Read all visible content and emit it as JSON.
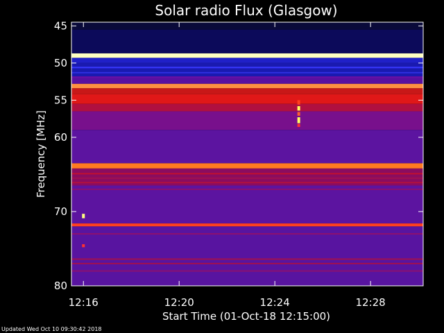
{
  "footer": {
    "updated": "Updated Wed Oct 10 09:30:42 2018"
  },
  "chart_data": {
    "type": "heatmap",
    "title": "Solar radio Flux (Glasgow)",
    "xlabel": "Start Time (01-Oct-18 12:15:00)",
    "ylabel": "Frequency [MHz]",
    "x_unit": "minutes after 12:15:00",
    "xlim": [
      0.5,
      15.2
    ],
    "x_ticks": [
      {
        "value": 1,
        "label": "12:16"
      },
      {
        "value": 5,
        "label": "12:20"
      },
      {
        "value": 9,
        "label": "12:24"
      },
      {
        "value": 13,
        "label": "12:28"
      }
    ],
    "ylim": [
      44.5,
      80
    ],
    "y_ticks": [
      45,
      50,
      55,
      60,
      70,
      80
    ],
    "y_tick_labels": [
      "45",
      "50",
      "55",
      "60",
      "70",
      "80"
    ],
    "background_bands": [
      {
        "from": 44.5,
        "to": 45.5,
        "color": "#0a0a3a"
      },
      {
        "from": 45.5,
        "to": 48.7,
        "color": "#0c0a5a"
      },
      {
        "from": 48.7,
        "to": 49.3,
        "color": "#ffffc0"
      },
      {
        "from": 49.3,
        "to": 50.0,
        "color": "#2020c8"
      },
      {
        "from": 50.0,
        "to": 51.8,
        "color": "#1a1ab0"
      },
      {
        "from": 51.8,
        "to": 52.8,
        "color": "#5a10a0"
      },
      {
        "from": 52.8,
        "to": 53.4,
        "color": "#ff9040"
      },
      {
        "from": 53.4,
        "to": 54.2,
        "color": "#c81818"
      },
      {
        "from": 54.2,
        "to": 55.5,
        "color": "#e01818"
      },
      {
        "from": 55.5,
        "to": 56.5,
        "color": "#b01040"
      },
      {
        "from": 56.5,
        "to": 59.0,
        "color": "#78108c"
      },
      {
        "from": 59.0,
        "to": 63.5,
        "color": "#5c14a0"
      },
      {
        "from": 63.5,
        "to": 64.2,
        "color": "#ff7a20"
      },
      {
        "from": 64.2,
        "to": 66.5,
        "color": "#8a0c60"
      },
      {
        "from": 66.5,
        "to": 71.6,
        "color": "#5c14a0"
      },
      {
        "from": 71.6,
        "to": 72.0,
        "color": "#ff4020"
      },
      {
        "from": 72.0,
        "to": 80.0,
        "color": "#5814a0"
      }
    ],
    "lines": [
      {
        "freq": 50.6,
        "color": "#3838ff"
      },
      {
        "freq": 51.3,
        "color": "#3030e0"
      },
      {
        "freq": 51.9,
        "color": "#6a10a8"
      },
      {
        "freq": 64.9,
        "color": "#c01030"
      },
      {
        "freq": 65.5,
        "color": "#a01050"
      },
      {
        "freq": 66.1,
        "color": "#b01040"
      },
      {
        "freq": 67.0,
        "color": "#8c1070"
      },
      {
        "freq": 73.0,
        "color": "#8c1070"
      },
      {
        "freq": 76.4,
        "color": "#a01050"
      },
      {
        "freq": 77.0,
        "color": "#a01050"
      },
      {
        "freq": 78.0,
        "color": "#8c1070"
      }
    ],
    "bursts": [
      {
        "time": 1.0,
        "from": 70.3,
        "to": 70.9,
        "color": "#ffff80"
      },
      {
        "time": 1.0,
        "from": 74.4,
        "to": 74.8,
        "color": "#ff3030"
      },
      {
        "time": 10.0,
        "from": 55.0,
        "to": 55.6,
        "color": "#ff4020"
      },
      {
        "time": 10.0,
        "from": 55.8,
        "to": 56.4,
        "color": "#ffff60"
      },
      {
        "time": 10.0,
        "from": 56.6,
        "to": 57.1,
        "color": "#ff6030"
      },
      {
        "time": 10.0,
        "from": 57.3,
        "to": 58.1,
        "color": "#ffff60"
      },
      {
        "time": 10.0,
        "from": 58.2,
        "to": 58.6,
        "color": "#ff3030"
      }
    ]
  }
}
